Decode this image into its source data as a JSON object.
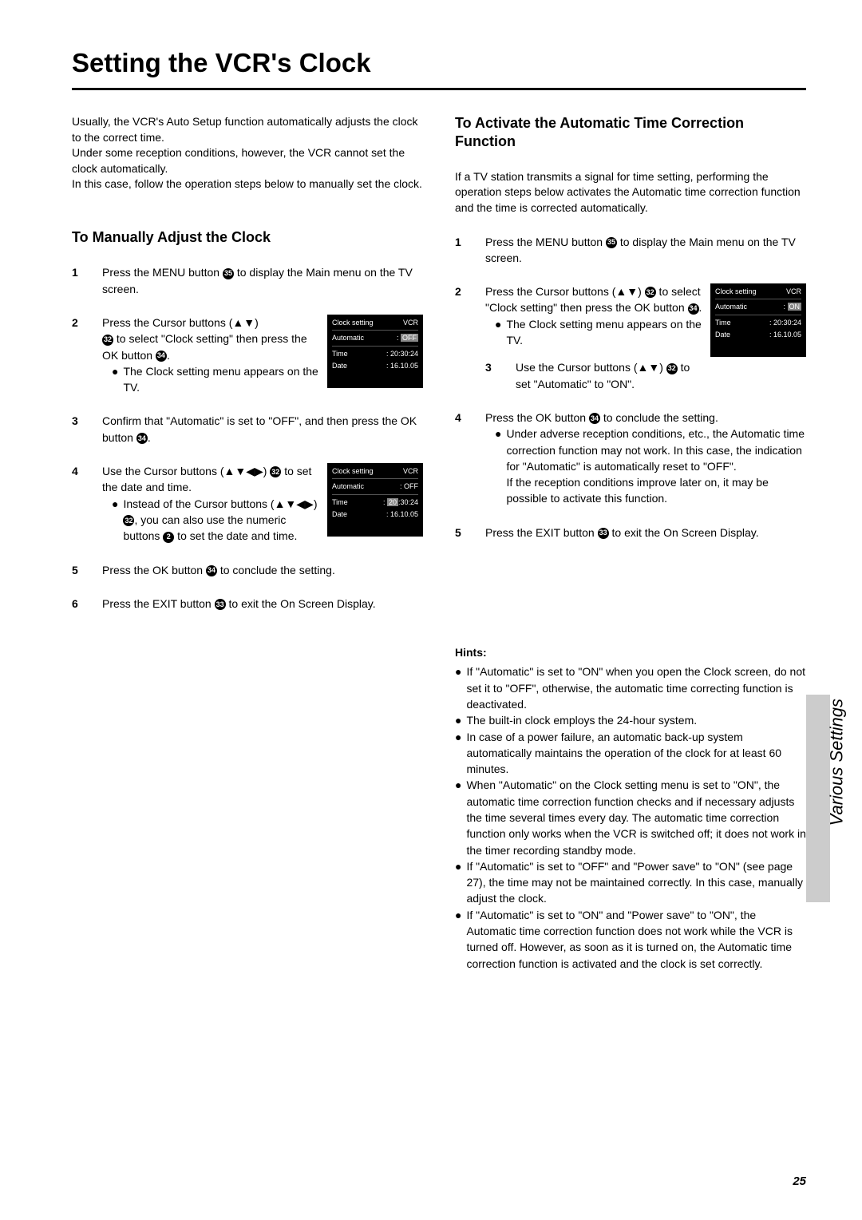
{
  "page_title": "Setting the VCR's Clock",
  "intro": "Usually, the VCR's Auto Setup function automatically adjusts the clock to the correct time.\nUnder some reception conditions, however, the VCR cannot set the clock automatically.\nIn this case, follow the operation steps below to manually set the clock.",
  "left_heading": "To Manually Adjust the Clock",
  "right_heading": "To Activate the Automatic Time Correction Function",
  "right_intro": "If a TV station transmits a signal for time setting, performing the operation steps below activates the Automatic time correction function and the time is corrected automatically.",
  "refs": {
    "menu": "35",
    "cursor": "32",
    "ok": "34",
    "numeric": "2",
    "exit": "33"
  },
  "left_steps": [
    {
      "num": "1",
      "plain": [
        "Press the MENU button ",
        {
          "ref": "menu"
        },
        " to display the Main menu on the TV screen."
      ]
    },
    {
      "num": "2",
      "with_menu": true,
      "menu_key": "menu_off",
      "lines": [
        [
          "Press the Cursor buttons (▲▼)"
        ],
        [
          {
            "ref": "cursor"
          },
          " to select \"Clock setting\" then press the OK button ",
          {
            "ref": "ok"
          },
          "."
        ]
      ],
      "bullet": "The Clock setting menu appears on the TV."
    },
    {
      "num": "3",
      "plain": [
        "Confirm that \"Automatic\" is set to \"OFF\", and then press the OK button ",
        {
          "ref": "ok"
        },
        "."
      ]
    },
    {
      "num": "4",
      "with_menu": true,
      "menu_key": "menu_off2",
      "lines": [
        [
          "Use the Cursor buttons (▲▼◀▶) ",
          {
            "ref": "cursor"
          },
          " to set the date and time."
        ]
      ],
      "bullet_multi": [
        "Instead of the Cursor buttons (▲▼◀▶) ",
        {
          "ref": "cursor"
        },
        ", you can also use the numeric buttons ",
        {
          "ref": "numeric"
        },
        " to set the date and time."
      ]
    },
    {
      "num": "5",
      "plain": [
        "Press the OK button ",
        {
          "ref": "ok"
        },
        " to conclude the setting."
      ]
    },
    {
      "num": "6",
      "plain": [
        "Press the EXIT button ",
        {
          "ref": "exit"
        },
        " to exit the On Screen Display."
      ]
    }
  ],
  "right_steps": [
    {
      "num": "1",
      "plain": [
        "Press the MENU button ",
        {
          "ref": "menu"
        },
        " to display the Main menu on the TV screen."
      ]
    },
    {
      "num": "2",
      "with_menu": true,
      "menu_key": "menu_on",
      "lines": [
        [
          "Press the Cursor buttons (▲▼) ",
          {
            "ref": "cursor"
          },
          " to select \"Clock setting\" then press the OK button ",
          {
            "ref": "ok"
          },
          "."
        ]
      ],
      "bullet": "The Clock setting menu appears on the TV.",
      "extra_step": {
        "num": "3",
        "lines": [
          "Use the Cursor buttons (▲▼) ",
          {
            "ref": "cursor"
          },
          " to set \"Automatic\" to \"ON\"."
        ]
      }
    },
    {
      "num": "4",
      "plain": [
        "Press the OK button ",
        {
          "ref": "ok"
        },
        " to conclude the setting."
      ],
      "bullet_block": "Under adverse reception conditions, etc., the Automatic time correction function may not work. In this case, the indication for \"Automatic\" is automatically reset to \"OFF\".\nIf the reception conditions improve later on, it may be possible to activate this function."
    },
    {
      "num": "5",
      "plain": [
        "Press the EXIT button ",
        {
          "ref": "exit"
        },
        " to exit the On Screen Display."
      ]
    }
  ],
  "menus": {
    "menu_off": {
      "title": "Clock setting",
      "badge": "VCR",
      "automatic": "OFF",
      "automatic_hl": true,
      "time": "20:30:24",
      "date": "16.10.05"
    },
    "menu_off2": {
      "title": "Clock setting",
      "badge": "VCR",
      "automatic": "OFF",
      "automatic_hl": false,
      "time": "20:30:24",
      "time_hl": true,
      "date": "16.10.05"
    },
    "menu_on": {
      "title": "Clock setting",
      "badge": "VCR",
      "automatic": "ON",
      "automatic_hl": true,
      "time": "20:30:24",
      "date": "16.10.05"
    }
  },
  "hints_title": "Hints:",
  "hints": [
    "If \"Automatic\" is set to \"ON\" when you open the Clock screen, do not set it to \"OFF\", otherwise, the automatic time correcting function is deactivated.",
    "The built-in clock employs the 24-hour system.",
    "In case of a power failure, an automatic back-up system automatically maintains the operation of the clock for at least 60 minutes.",
    "When \"Automatic\" on the Clock setting menu is set to \"ON\", the automatic time correction function checks and if necessary adjusts the time several times every day. The automatic time correction function only works when the VCR is switched off; it does not work in the timer recording standby mode.",
    "If \"Automatic\" is set to \"OFF\" and \"Power save\" to \"ON\" (see page 27), the time may not be maintained correctly. In this case, manually adjust the clock.",
    "If \"Automatic\" is set to \"ON\" and \"Power save\" to \"ON\", the Automatic time correction function does not work while the VCR is turned off. However, as soon as it is turned on, the Automatic time correction function is activated and the clock is set correctly."
  ],
  "side_label": "Various Settings",
  "page_number": "25"
}
